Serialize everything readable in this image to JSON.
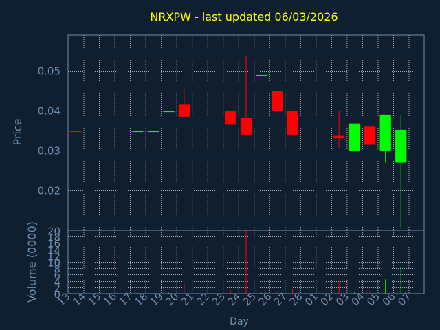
{
  "chart_data": {
    "type": "candlestick",
    "title": "NRXPW - last updated 06/03/2026",
    "xlabel": "Day",
    "price_panel": {
      "ylabel": "Price",
      "ylim": [
        0.01,
        0.059
      ],
      "yticks": [
        "0.02",
        "0.03",
        "0.04",
        "0.05"
      ],
      "grid": true
    },
    "volume_panel": {
      "ylabel": "Volume (0000)",
      "ylim": [
        0,
        20
      ],
      "yticks": [
        "0",
        "2",
        "4",
        "6",
        "8",
        "10",
        "12",
        "14",
        "16",
        "18",
        "20"
      ],
      "grid": true
    },
    "x_ticks": [
      "13",
      "14",
      "15",
      "16",
      "17",
      "18",
      "19",
      "20",
      "21",
      "22",
      "23",
      "24",
      "25",
      "26",
      "27",
      "28",
      "01",
      "02",
      "03",
      "04",
      "05",
      "06",
      "07"
    ],
    "candles": [
      {
        "day": "13",
        "open": 0.035,
        "high": 0.035,
        "low": 0.035,
        "close": 0.035,
        "volume": 0.3,
        "direction": "down"
      },
      {
        "day": "17",
        "open": 0.035,
        "high": 0.035,
        "low": 0.035,
        "close": 0.035,
        "volume": 0.2,
        "direction": "up"
      },
      {
        "day": "18",
        "open": 0.035,
        "high": 0.035,
        "low": 0.035,
        "close": 0.035,
        "volume": 0.2,
        "direction": "up"
      },
      {
        "day": "19",
        "open": 0.04,
        "high": 0.04,
        "low": 0.04,
        "close": 0.04,
        "volume": 0.3,
        "direction": "up"
      },
      {
        "day": "20",
        "open": 0.0415,
        "high": 0.0455,
        "low": 0.0385,
        "close": 0.0385,
        "volume": 3.5,
        "direction": "down"
      },
      {
        "day": "23",
        "open": 0.04,
        "high": 0.04,
        "low": 0.0365,
        "close": 0.0365,
        "volume": 1.0,
        "direction": "down"
      },
      {
        "day": "24",
        "open": 0.0383,
        "high": 0.0538,
        "low": 0.034,
        "close": 0.034,
        "volume": 20.0,
        "direction": "down"
      },
      {
        "day": "25",
        "open": 0.049,
        "high": 0.049,
        "low": 0.049,
        "close": 0.049,
        "volume": 0.3,
        "direction": "up"
      },
      {
        "day": "26",
        "open": 0.045,
        "high": 0.045,
        "low": 0.04,
        "close": 0.04,
        "volume": 0.5,
        "direction": "down"
      },
      {
        "day": "27",
        "open": 0.04,
        "high": 0.04,
        "low": 0.034,
        "close": 0.034,
        "volume": 1.5,
        "direction": "down"
      },
      {
        "day": "02",
        "open": 0.0337,
        "high": 0.04,
        "low": 0.0305,
        "close": 0.0331,
        "volume": 4.0,
        "direction": "down"
      },
      {
        "day": "03",
        "open": 0.03,
        "high": 0.0368,
        "low": 0.03,
        "close": 0.0368,
        "volume": 0.5,
        "direction": "up"
      },
      {
        "day": "04",
        "open": 0.036,
        "high": 0.036,
        "low": 0.0315,
        "close": 0.0315,
        "volume": 0.8,
        "direction": "down"
      },
      {
        "day": "05",
        "open": 0.03,
        "high": 0.039,
        "low": 0.027,
        "close": 0.039,
        "volume": 4.5,
        "direction": "up"
      },
      {
        "day": "06",
        "open": 0.027,
        "high": 0.039,
        "low": 0.0105,
        "close": 0.0352,
        "volume": 8.5,
        "direction": "up"
      }
    ],
    "colors": {
      "background": "#0f1f2f",
      "plot_border": "#6e8eb0",
      "grid": "#c8c8c8",
      "up": "#00ff00",
      "down": "#ff0000",
      "title": "#ffff00",
      "axis_text": "#6e8eb0",
      "xlabel_text": "#0a0f14"
    }
  }
}
